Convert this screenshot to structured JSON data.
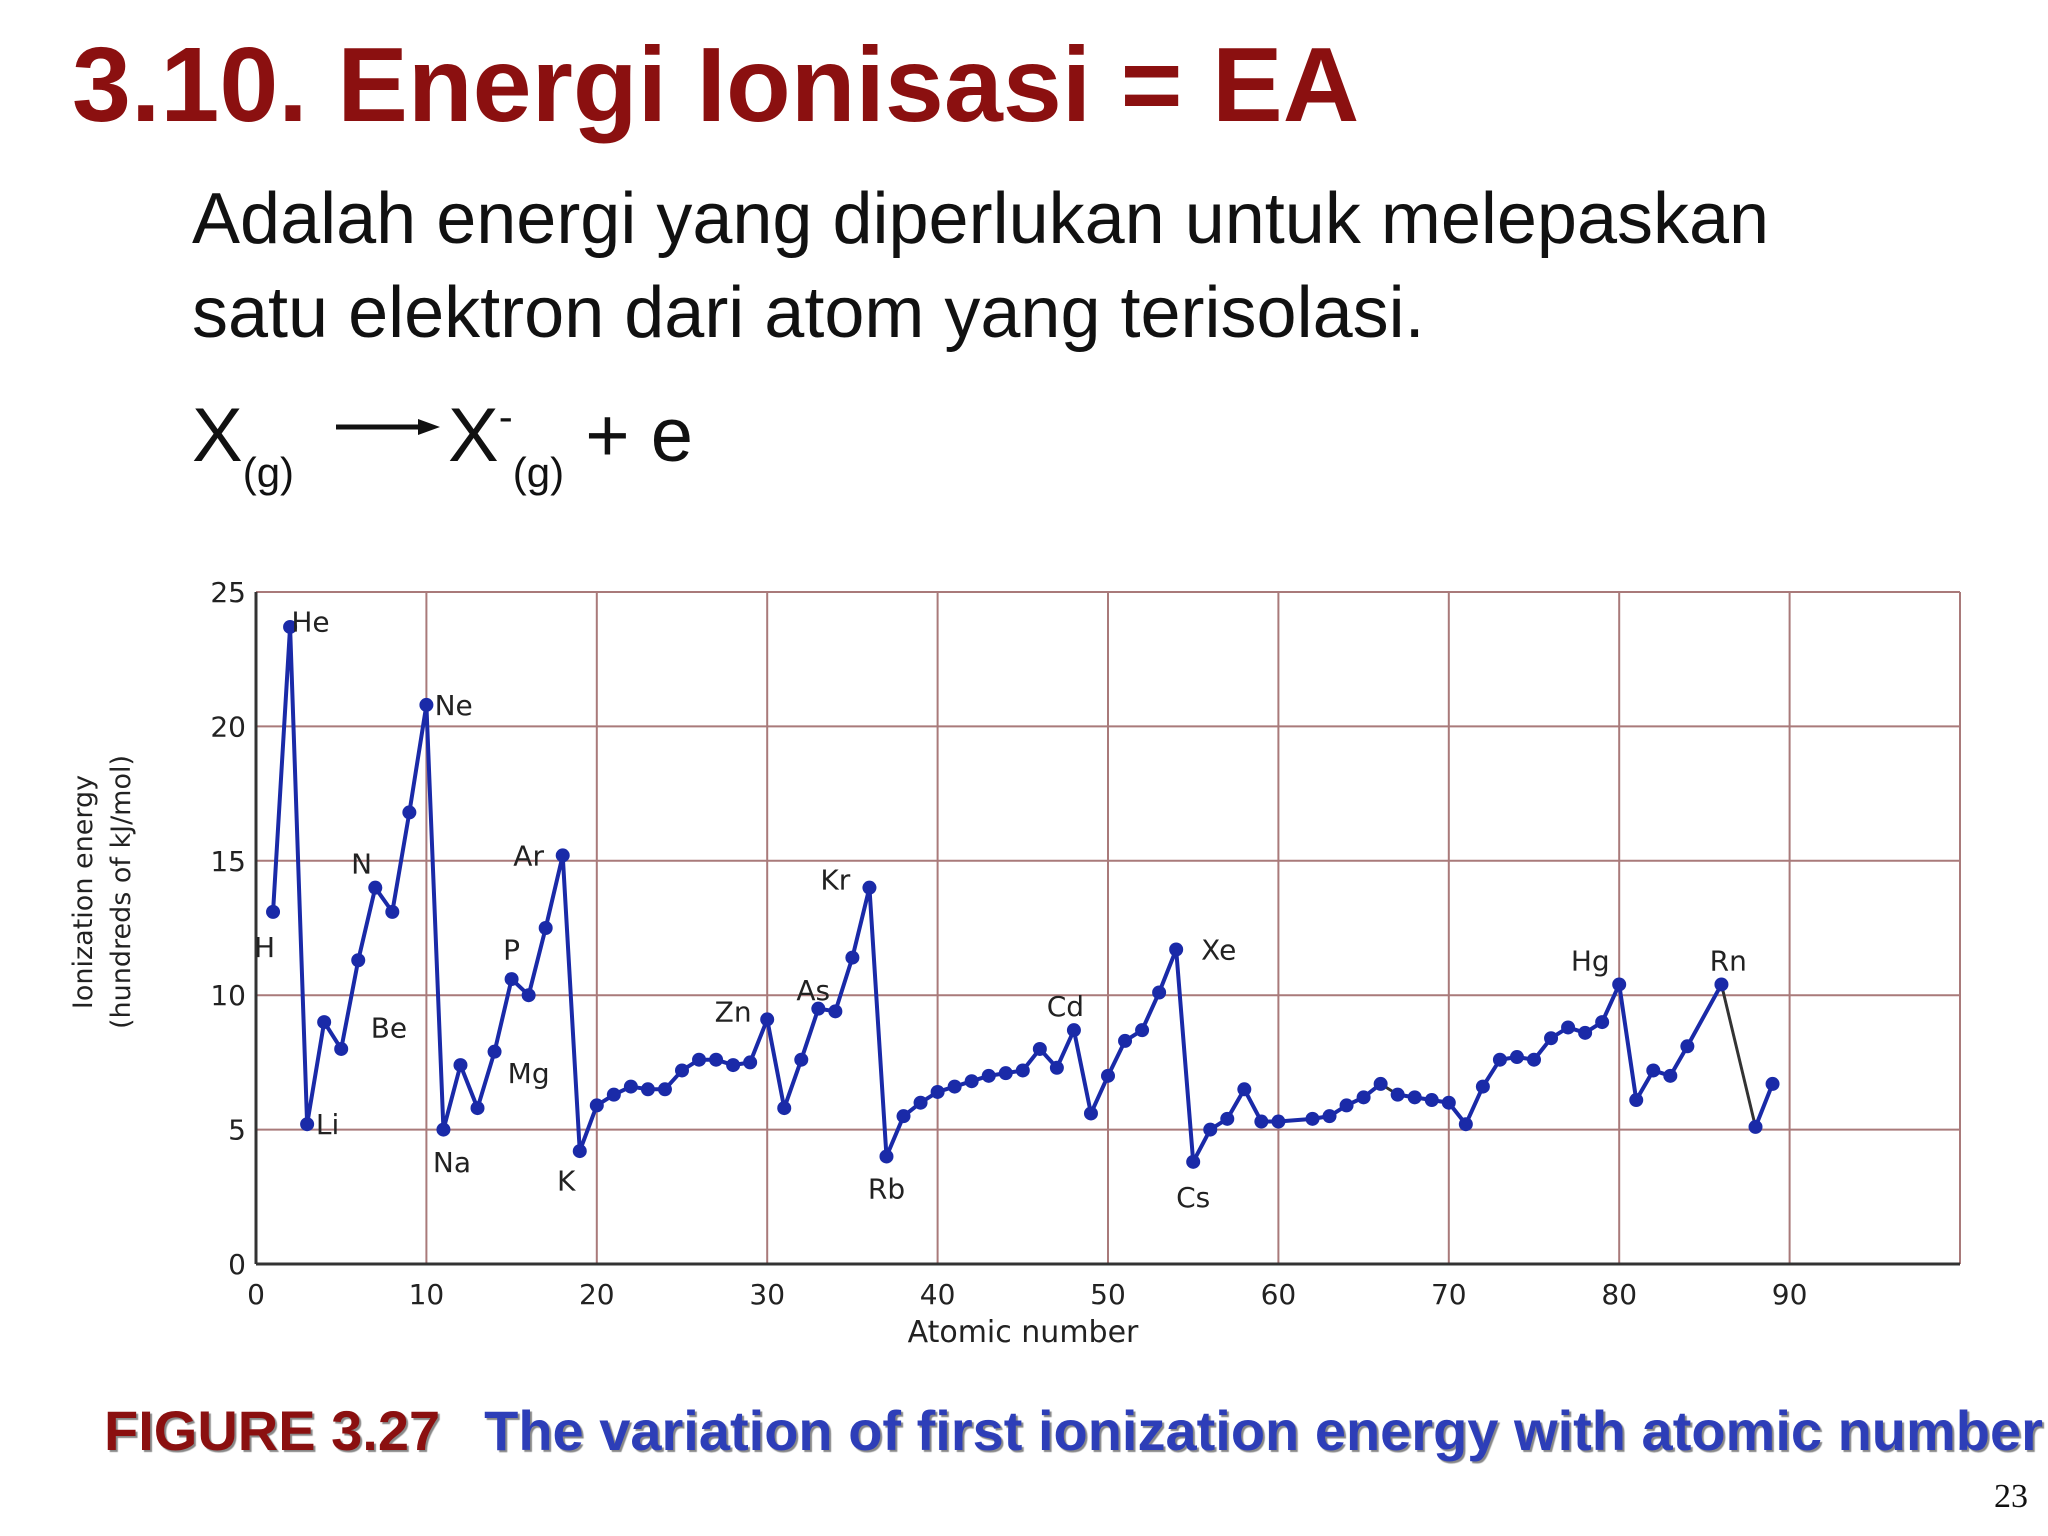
{
  "slide": {
    "title": "3.10. Energi Ionisasi = EA",
    "description_line1": "Adalah energi yang diperlukan untuk melepaskan",
    "description_line2": "satu elektron dari atom yang terisolasi.",
    "equation": {
      "reactant": "X",
      "reactant_state": "(g)",
      "product": "X",
      "product_charge": "-",
      "product_state": "(g)",
      "rest": " + e"
    },
    "caption_figure": "FIGURE 3.27",
    "caption_text": "The variation of first ionization energy with atomic number",
    "page_number": "23"
  },
  "chart_data": {
    "type": "line",
    "xlabel": "Atomic number",
    "ylabel_line1": "Ionization energy",
    "ylabel_line2": "(hundreds of kJ/mol)",
    "xlim": [
      0,
      100
    ],
    "ylim": [
      0,
      25
    ],
    "xticks": [
      0,
      10,
      20,
      30,
      40,
      50,
      60,
      70,
      80,
      90
    ],
    "yticks": [
      0,
      5,
      10,
      15,
      20,
      25
    ],
    "grid": true,
    "line_color": "#1a2aa8",
    "gap_color": "#333333",
    "segments": [
      {
        "x": [
          1,
          2,
          3,
          4,
          5,
          6,
          7,
          8,
          9,
          10,
          11,
          12,
          13,
          14,
          15,
          16,
          17,
          18,
          19,
          20,
          21,
          22,
          23,
          24,
          25,
          26,
          27,
          28,
          29,
          30,
          31,
          32,
          33,
          34,
          35,
          36,
          37,
          38,
          39,
          40,
          41,
          42,
          43,
          44,
          45,
          46,
          47,
          48,
          49,
          50,
          51,
          52,
          53,
          54,
          55,
          56,
          57,
          58,
          59,
          60,
          62,
          63,
          64,
          65,
          66
        ],
        "y": [
          13.1,
          23.7,
          5.2,
          9.0,
          8.0,
          11.3,
          14.0,
          13.1,
          16.8,
          20.8,
          5.0,
          7.4,
          5.8,
          7.9,
          10.6,
          10.0,
          12.5,
          15.2,
          4.2,
          5.9,
          6.3,
          6.6,
          6.5,
          6.5,
          7.2,
          7.6,
          7.6,
          7.4,
          7.5,
          9.1,
          5.8,
          7.6,
          9.5,
          9.4,
          11.4,
          14.0,
          4.0,
          5.5,
          6.0,
          6.4,
          6.6,
          6.8,
          7.0,
          7.1,
          7.2,
          8.0,
          7.3,
          8.7,
          5.6,
          7.0,
          8.3,
          8.7,
          10.1,
          11.7,
          3.8,
          5.0,
          5.4,
          6.5,
          5.3,
          5.3,
          5.4,
          5.5,
          5.9,
          6.2,
          6.7
        ]
      },
      {
        "x": [
          67,
          68,
          69,
          70,
          71,
          72,
          73,
          74,
          75,
          76,
          77,
          78,
          79,
          80,
          81,
          82,
          83,
          84,
          86
        ],
        "y": [
          6.3,
          6.2,
          6.1,
          6.0,
          5.2,
          6.6,
          7.6,
          7.7,
          7.6,
          8.4,
          8.8,
          8.6,
          9.0,
          10.4,
          6.1,
          7.2,
          7.0,
          8.1,
          10.4
        ]
      },
      {
        "x": [
          88,
          89
        ],
        "y": [
          5.1,
          6.7
        ]
      }
    ],
    "gap_lines": [
      {
        "x": [
          66,
          67
        ],
        "y": [
          6.7,
          6.3
        ]
      },
      {
        "x": [
          86,
          88
        ],
        "y": [
          10.4,
          5.1
        ]
      }
    ],
    "labels": [
      {
        "text": "He",
        "x": 2,
        "y": 23.7,
        "dx": 1.2,
        "dy": 0.2
      },
      {
        "text": "H",
        "x": 1,
        "y": 13.1,
        "dx": -0.5,
        "dy": -1.3
      },
      {
        "text": "Li",
        "x": 3,
        "y": 5.2,
        "dx": 1.2,
        "dy": 0.0
      },
      {
        "text": "Be",
        "x": 4,
        "y": 9.0,
        "dx": 3.8,
        "dy": -0.2
      },
      {
        "text": "N",
        "x": 7,
        "y": 14.0,
        "dx": -0.8,
        "dy": 0.9
      },
      {
        "text": "Ne",
        "x": 10,
        "y": 20.8,
        "dx": 1.6,
        "dy": 0.0
      },
      {
        "text": "Na",
        "x": 11,
        "y": 5.0,
        "dx": 0.5,
        "dy": -1.2
      },
      {
        "text": "Mg",
        "x": 12,
        "y": 7.4,
        "dx": 4.0,
        "dy": -0.3
      },
      {
        "text": "P",
        "x": 15,
        "y": 10.6,
        "dx": 0.0,
        "dy": 1.1
      },
      {
        "text": "Ar",
        "x": 18,
        "y": 15.2,
        "dx": -2.0,
        "dy": 0.0
      },
      {
        "text": "K",
        "x": 19,
        "y": 4.2,
        "dx": -0.8,
        "dy": -1.1
      },
      {
        "text": "Zn",
        "x": 30,
        "y": 9.1,
        "dx": -2.0,
        "dy": 0.3
      },
      {
        "text": "As",
        "x": 33,
        "y": 9.5,
        "dx": -0.3,
        "dy": 0.7
      },
      {
        "text": "Kr",
        "x": 36,
        "y": 14.0,
        "dx": -2.0,
        "dy": 0.3
      },
      {
        "text": "Rb",
        "x": 37,
        "y": 4.0,
        "dx": 0.0,
        "dy": -1.2
      },
      {
        "text": "Cd",
        "x": 48,
        "y": 8.7,
        "dx": -0.5,
        "dy": 0.9
      },
      {
        "text": "Xe",
        "x": 54,
        "y": 11.7,
        "dx": 2.5,
        "dy": 0.0
      },
      {
        "text": "Cs",
        "x": 55,
        "y": 3.8,
        "dx": 0.0,
        "dy": -1.3
      },
      {
        "text": "Hg",
        "x": 80,
        "y": 10.4,
        "dx": -1.7,
        "dy": 0.9
      },
      {
        "text": "Rn",
        "x": 86,
        "y": 10.4,
        "dx": 0.4,
        "dy": 0.9
      }
    ]
  }
}
